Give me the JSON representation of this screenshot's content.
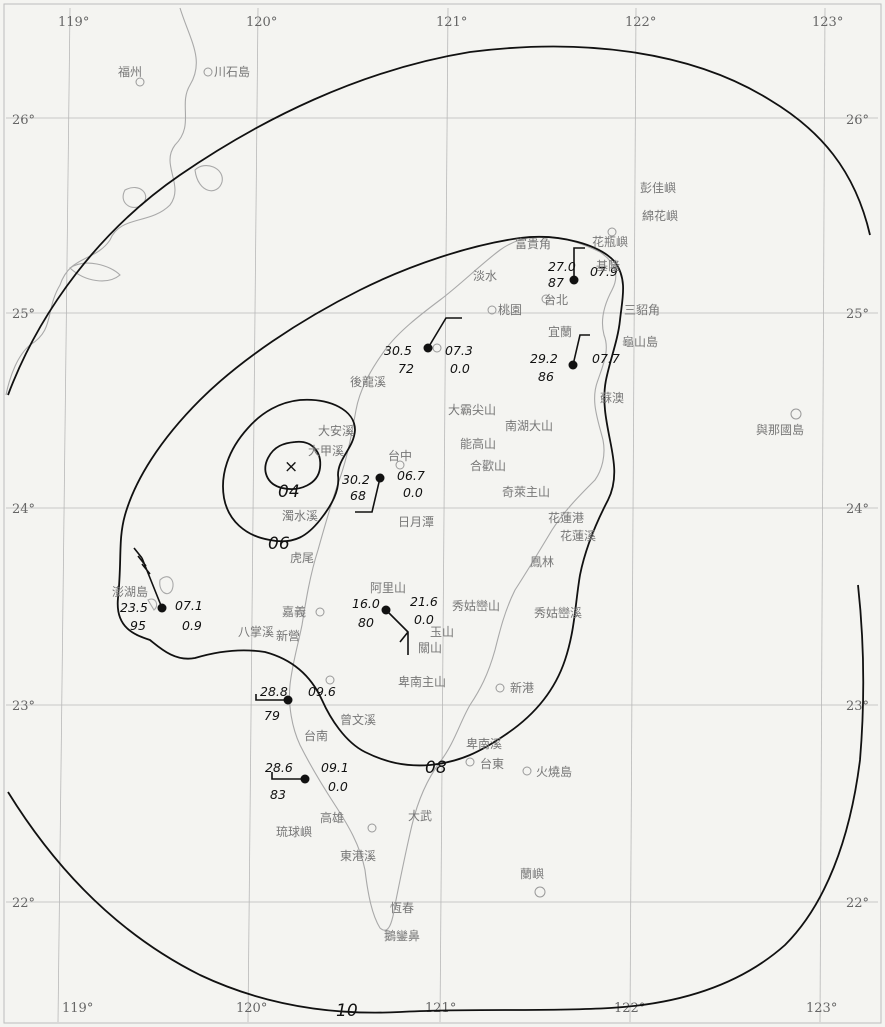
{
  "map": {
    "longitude_labels": [
      "119°",
      "120°",
      "121°",
      "122°",
      "123°"
    ],
    "latitude_labels": [
      "26°",
      "25°",
      "24°",
      "23°",
      "22°"
    ],
    "isobar_labels": [
      "04",
      "06",
      "08",
      "10"
    ],
    "low_center_symbol": "×",
    "stations": [
      {
        "pressure": "27.0",
        "temp": "07.9",
        "humidity": "87",
        "rain": ""
      },
      {
        "pressure": "30.5",
        "temp": "07.3",
        "humidity": "72",
        "rain": "0.0"
      },
      {
        "pressure": "29.2",
        "temp": "07.7",
        "humidity": "86",
        "rain": ""
      },
      {
        "pressure": "30.2",
        "temp": "06.7",
        "humidity": "68",
        "rain": "0.0"
      },
      {
        "pressure": "23.5",
        "temp": "07.1",
        "humidity": "95",
        "rain": "0.9"
      },
      {
        "pressure": "16.0",
        "temp": "21.6",
        "humidity": "80",
        "rain": "0.0"
      },
      {
        "pressure": "28.8",
        "temp": "09.6",
        "humidity": "79",
        "rain": ""
      },
      {
        "pressure": "28.6",
        "temp": "09.1",
        "humidity": "83",
        "rain": "0.0"
      }
    ],
    "places": [
      "福州",
      "川石島",
      "彭佳嶼",
      "綿花嶼",
      "花瓶嶼",
      "富貴角",
      "基隆",
      "淡水",
      "台北",
      "桃園",
      "三貂角",
      "龜山島",
      "宜蘭",
      "蘇澳",
      "大霸尖山",
      "南湖大山",
      "大安溪",
      "大甲溪",
      "後龍溪",
      "濁水溪",
      "台中",
      "合歡山",
      "能高山",
      "奇萊主山",
      "日月潭",
      "花蓮港",
      "花蓮溪",
      "鳳林",
      "澎湖島",
      "嘉義",
      "新營",
      "虎尾",
      "玉山",
      "阿里山",
      "秀姑巒山",
      "秀姑巒溪",
      "關山",
      "卑南主山",
      "新港",
      "台南",
      "高雄",
      "台東",
      "火燒島",
      "琉球嶼",
      "恆春",
      "蘭嶼",
      "鵝鑾鼻",
      "與那國島",
      "八掌溪",
      "曾文溪",
      "東港溪",
      "卑南溪",
      "大武"
    ]
  }
}
